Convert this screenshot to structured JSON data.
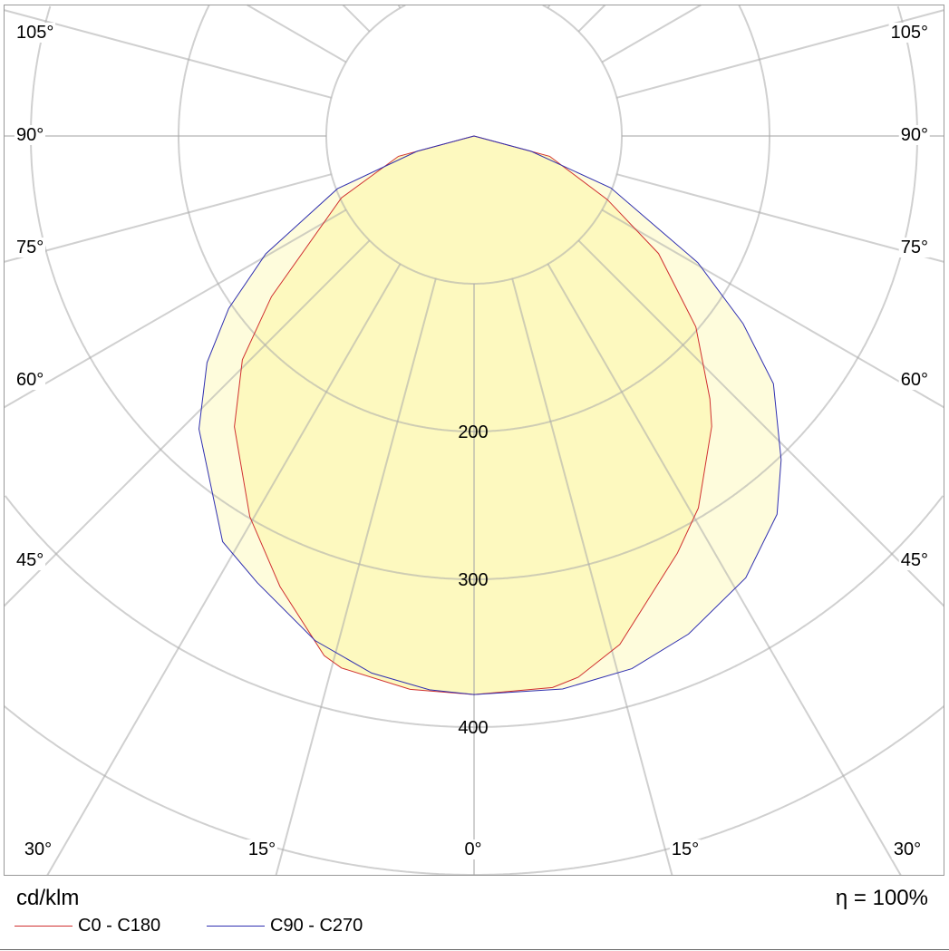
{
  "chart_data": {
    "type": "polar",
    "unit_label": "cd/klm",
    "efficiency_label": "η = 100%",
    "radial_tick_labels": [
      "200",
      "300",
      "400"
    ],
    "radial_ticks": [
      100,
      200,
      300,
      400,
      500,
      600,
      700,
      800
    ],
    "angle_step_deg": 15,
    "angle_labels_left": [
      "105°",
      "90°",
      "75°",
      "60°",
      "45°"
    ],
    "angle_labels_bottom": [
      "30°",
      "15°",
      "0°",
      "15°",
      "30°"
    ],
    "angle_labels_right": [
      "105°",
      "90°",
      "75°",
      "60°",
      "45°"
    ],
    "grid": true,
    "legend_position": "bottom-left",
    "series": [
      {
        "name": "C0 - C180",
        "line_color": "#d03030",
        "fill_color": "#fdf9bf",
        "points": [
          [
            -90,
            0
          ],
          [
            -75,
            53
          ],
          [
            -65,
            99
          ],
          [
            -51.6,
            175
          ],
          [
            -46,
            218
          ],
          [
            -39.5,
            255
          ],
          [
            -30.5,
            299
          ],
          [
            -23.3,
            332
          ],
          [
            -16.1,
            366
          ],
          [
            -14,
            371
          ],
          [
            -6.6,
            377
          ],
          [
            0,
            378
          ],
          [
            8.1,
            377
          ],
          [
            10.9,
            373
          ],
          [
            16,
            358
          ],
          [
            26,
            314
          ],
          [
            31.1,
            294
          ],
          [
            39.3,
            254
          ],
          [
            41.9,
            239
          ],
          [
            49.3,
            198
          ],
          [
            57.5,
            148
          ],
          [
            64.5,
            100
          ],
          [
            75,
            53
          ],
          [
            90,
            0
          ]
        ]
      },
      {
        "name": "C90 - C270",
        "line_color": "#3030b0",
        "fill_color": "#fefcdc",
        "points": [
          [
            -90,
            0
          ],
          [
            -75,
            40
          ],
          [
            -68.9,
            99
          ],
          [
            -60.5,
            162
          ],
          [
            -54.9,
            203
          ],
          [
            -49.7,
            237
          ],
          [
            -43.2,
            272
          ],
          [
            -31.8,
            323
          ],
          [
            -25.9,
            336
          ],
          [
            -17.5,
            358
          ],
          [
            -10.8,
            370
          ],
          [
            -4.6,
            376
          ],
          [
            0,
            378
          ],
          [
            9.1,
            379
          ],
          [
            16.5,
            376
          ],
          [
            23.3,
            367
          ],
          [
            31.6,
            351
          ],
          [
            38.7,
            328
          ],
          [
            43.5,
            302
          ],
          [
            50.4,
            263
          ],
          [
            55.1,
            222
          ],
          [
            60.5,
            174
          ],
          [
            69.2,
            99
          ],
          [
            75,
            40
          ],
          [
            90,
            0
          ]
        ]
      }
    ]
  }
}
